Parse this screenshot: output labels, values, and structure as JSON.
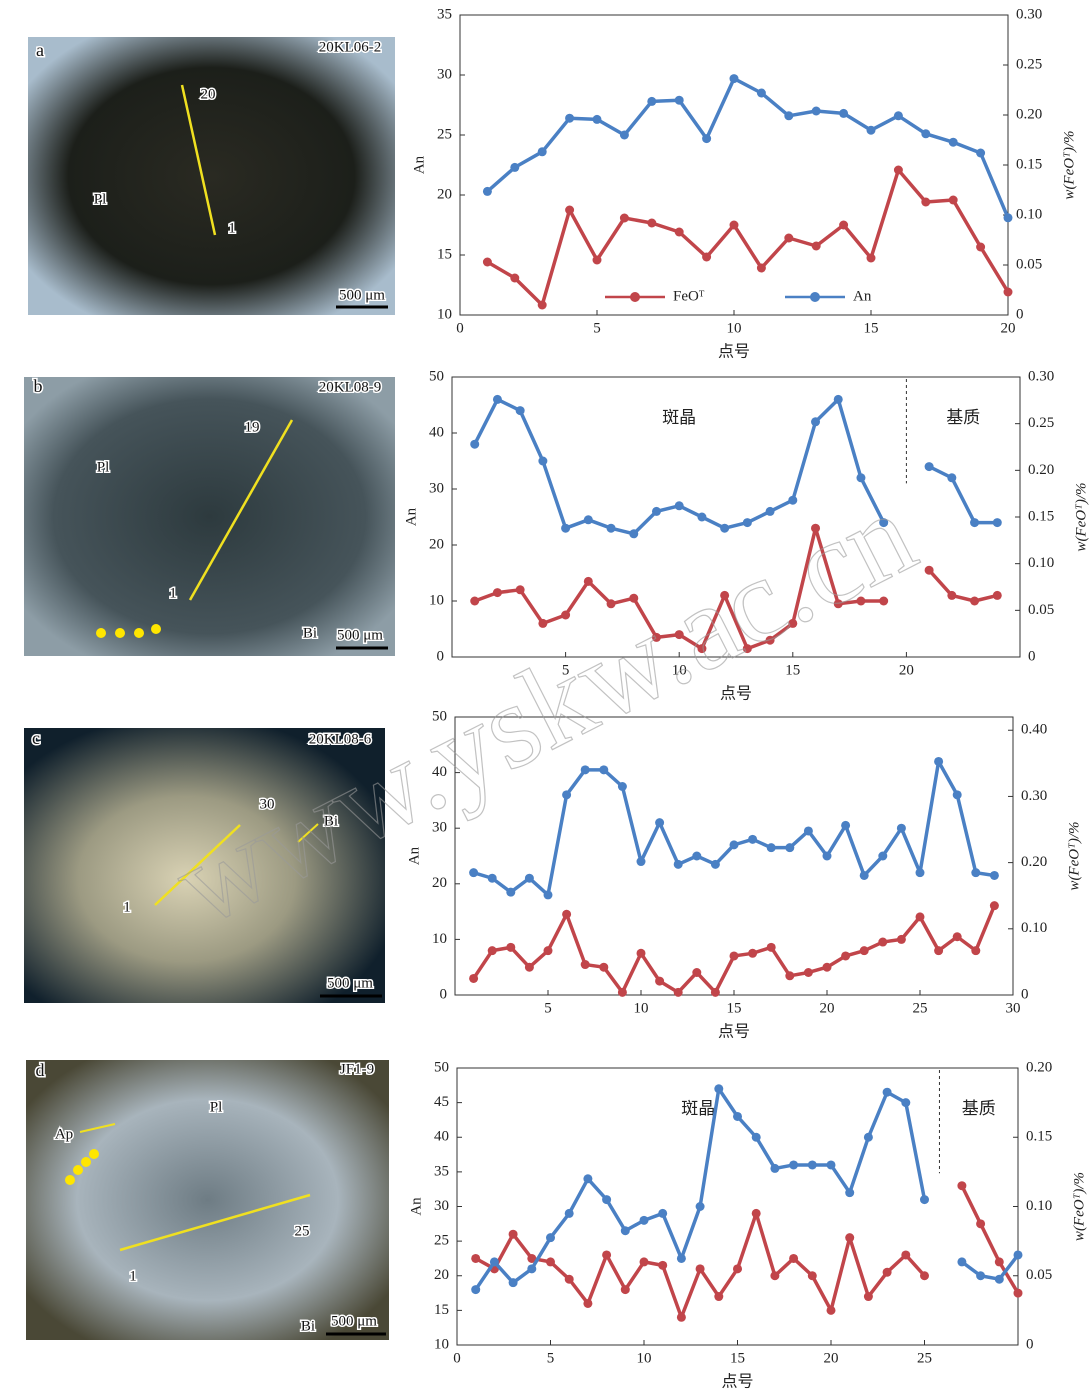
{
  "watermark": "www.yskw.ac.cn",
  "photos": [
    {
      "panel": "a",
      "sample": "20KL06-2",
      "labels": [
        "Pl",
        "20",
        "1"
      ],
      "scale": "500 μm"
    },
    {
      "panel": "b",
      "sample": "20KL08-9",
      "labels": [
        "Pl",
        "19",
        "1",
        "Bi"
      ],
      "scale": "500 μm"
    },
    {
      "panel": "c",
      "sample": "20KL08-6",
      "labels": [
        "30",
        "Bi",
        "1"
      ],
      "scale": "500 μm"
    },
    {
      "panel": "d",
      "sample": "JF1-9",
      "labels": [
        "Pl",
        "Ap",
        "25",
        "1",
        "Bi"
      ],
      "scale": "500 μm"
    }
  ],
  "chart_data": [
    {
      "type": "line",
      "x_label": "点号",
      "y_label": "An",
      "y2_label": "w(FeOᵀ)/%",
      "legend": "bottom",
      "x": [
        1,
        2,
        3,
        4,
        5,
        6,
        7,
        8,
        9,
        10,
        11,
        12,
        13,
        14,
        15,
        16,
        17,
        18,
        19,
        20
      ],
      "xlim": [
        0,
        20
      ],
      "xticks": [
        0,
        5,
        10,
        15,
        20
      ],
      "ylim": [
        10,
        35
      ],
      "yticks": [
        10,
        15,
        20,
        25,
        30,
        35
      ],
      "y2lim": [
        0,
        0.3
      ],
      "y2ticks": [
        0,
        0.05,
        {
          "value": 0.1,
          "label": "0.10"
        },
        0.15,
        {
          "value": 0.2,
          "label": "0.20"
        },
        0.25,
        {
          "value": 0.3,
          "label": "0.30"
        }
      ],
      "series": [
        {
          "name": "FeOᵀ",
          "color": "#c1454a",
          "axis": "y2",
          "values": [
            0.053,
            0.037,
            0.01,
            0.105,
            0.055,
            0.097,
            0.092,
            0.083,
            0.058,
            0.09,
            0.047,
            0.077,
            0.069,
            0.09,
            0.057,
            0.145,
            0.113,
            0.115,
            0.068,
            0.023
          ]
        },
        {
          "name": "An",
          "color": "#4a80c4",
          "axis": "y",
          "values": [
            20.3,
            22.3,
            23.6,
            26.4,
            26.3,
            25.0,
            27.8,
            27.9,
            24.7,
            29.7,
            28.5,
            26.6,
            27.0,
            26.8,
            25.4,
            26.6,
            25.1,
            24.4,
            23.5,
            18.1
          ]
        }
      ]
    },
    {
      "type": "line",
      "x_label": "点号",
      "y_label": "An",
      "y2_label": "w(FeOᵀ)/%",
      "annotations": [
        "斑晶",
        "基质"
      ],
      "divider": 20,
      "x": [
        1,
        2,
        3,
        4,
        5,
        6,
        7,
        8,
        9,
        10,
        11,
        12,
        13,
        14,
        15,
        16,
        17,
        18,
        19,
        20,
        21,
        22,
        23,
        24
      ],
      "xlim": [
        0,
        25
      ],
      "xticks": [
        5,
        10,
        15,
        20
      ],
      "ylim": [
        0,
        50
      ],
      "yticks": [
        0,
        10,
        20,
        30,
        40,
        50
      ],
      "y2lim": [
        0,
        0.3
      ],
      "y2ticks": [
        0,
        0.05,
        {
          "value": 0.1,
          "label": "0.10"
        },
        0.15,
        {
          "value": 0.2,
          "label": "0.20"
        },
        0.25,
        {
          "value": 0.3,
          "label": "0.30"
        }
      ],
      "series": [
        {
          "color": "#c1454a",
          "axis": "y2",
          "values": [
            0.06,
            0.069,
            0.072,
            0.036,
            0.045,
            0.081,
            0.057,
            0.063,
            0.021,
            0.024,
            0.009,
            0.066,
            0.009,
            0.018,
            0.036,
            0.138,
            0.057,
            0.06,
            0.06,
            null,
            0.093,
            0.066,
            0.06,
            0.066
          ]
        },
        {
          "color": "#4a80c4",
          "axis": "y",
          "values": [
            38,
            46,
            44,
            35,
            23,
            24.5,
            23,
            22,
            26,
            27,
            25,
            23,
            24,
            26,
            28,
            42,
            46,
            32,
            24,
            null,
            34,
            32,
            24,
            24
          ]
        }
      ]
    },
    {
      "type": "line",
      "x_label": "点号",
      "y_label": "An",
      "y2_label": "w(FeOᵀ)/%",
      "x": [
        1,
        2,
        3,
        4,
        5,
        6,
        7,
        8,
        9,
        10,
        11,
        12,
        13,
        14,
        15,
        16,
        17,
        18,
        19,
        20,
        21,
        22,
        23,
        24,
        25,
        26,
        27,
        28,
        29
      ],
      "xlim": [
        0,
        30
      ],
      "xticks": [
        5,
        10,
        15,
        20,
        25,
        30
      ],
      "ylim": [
        0,
        50
      ],
      "yticks": [
        0,
        10,
        20,
        30,
        40,
        50
      ],
      "y2lim": [
        0,
        0.42
      ],
      "y2ticks": [
        0,
        {
          "value": 0.1,
          "label": "0.10"
        },
        {
          "value": 0.2,
          "label": "0.20"
        },
        {
          "value": 0.3,
          "label": "0.30"
        },
        {
          "value": 0.4,
          "label": "0.40"
        }
      ],
      "series": [
        {
          "color": "#c1454a",
          "axis": "y2",
          "values": [
            0.025,
            0.067,
            0.072,
            0.042,
            0.067,
            0.122,
            0.046,
            0.042,
            0.004,
            0.063,
            0.021,
            0.004,
            0.034,
            0.004,
            0.059,
            0.063,
            0.072,
            0.029,
            0.034,
            0.042,
            0.059,
            0.067,
            0.08,
            0.084,
            0.118,
            0.067,
            0.088,
            0.067,
            0.135
          ]
        },
        {
          "color": "#4a80c4",
          "axis": "y",
          "values": [
            22,
            21,
            18.5,
            21,
            18,
            36,
            40.5,
            40.5,
            37.5,
            24,
            31,
            23.5,
            25,
            23.5,
            27,
            28,
            26.5,
            26.5,
            29.5,
            25,
            30.5,
            21.5,
            25,
            30,
            22,
            42,
            36,
            22,
            21.5
          ]
        }
      ]
    },
    {
      "type": "line",
      "x_label": "点号",
      "y_label": "An",
      "y2_label": "w(FeOᵀ)/%",
      "annotations": [
        "斑晶",
        "基质"
      ],
      "divider": 25.8,
      "x": [
        1,
        2,
        3,
        4,
        5,
        6,
        7,
        8,
        9,
        10,
        11,
        12,
        13,
        14,
        15,
        16,
        17,
        18,
        19,
        20,
        21,
        22,
        23,
        24,
        25,
        26,
        27,
        28,
        29,
        30
      ],
      "xlim": [
        0,
        30
      ],
      "xticks": [
        0,
        5,
        10,
        15,
        20,
        25
      ],
      "ylim": [
        10,
        50
      ],
      "yticks": [
        10,
        15,
        20,
        25,
        30,
        35,
        40,
        45,
        50
      ],
      "y2lim": [
        0,
        0.2
      ],
      "y2ticks": [
        0,
        0.05,
        {
          "value": 0.1,
          "label": "0.10"
        },
        0.15,
        {
          "value": 0.2,
          "label": "0.20"
        }
      ],
      "series": [
        {
          "color": "#c1454a",
          "axis": "y2",
          "values": [
            0.0625,
            0.055,
            0.08,
            0.0625,
            0.06,
            0.0475,
            0.03,
            0.065,
            0.04,
            0.06,
            0.0575,
            0.02,
            0.055,
            0.035,
            0.055,
            0.095,
            0.05,
            0.0625,
            0.05,
            0.025,
            0.0775,
            0.035,
            0.0525,
            0.065,
            0.05,
            null,
            0.115,
            0.0875,
            0.06,
            0.0375
          ]
        },
        {
          "color": "#4a80c4",
          "axis": "y",
          "values": [
            18,
            22,
            19,
            21,
            25.5,
            29,
            34,
            31,
            26.5,
            28,
            29,
            22.5,
            30,
            47,
            43,
            40,
            35.5,
            36,
            36,
            36,
            32,
            40,
            46.5,
            45,
            31,
            null,
            22,
            20,
            19.5,
            23
          ]
        }
      ]
    }
  ]
}
